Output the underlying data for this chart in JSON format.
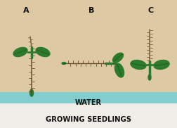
{
  "bg_color": "#ddc9a3",
  "water_color": "#82cece",
  "water_label": "WATER",
  "water_label_color": "#111111",
  "title": "GROWING SEEDLINGS",
  "title_color": "#111111",
  "labels": [
    "A",
    "B",
    "C"
  ],
  "label_color": "#111111",
  "stem_color": "#6b4c2a",
  "leaf_color": "#2d7a2d",
  "root_color": "#7a5c3a",
  "fig_bg": "#f0ede8"
}
